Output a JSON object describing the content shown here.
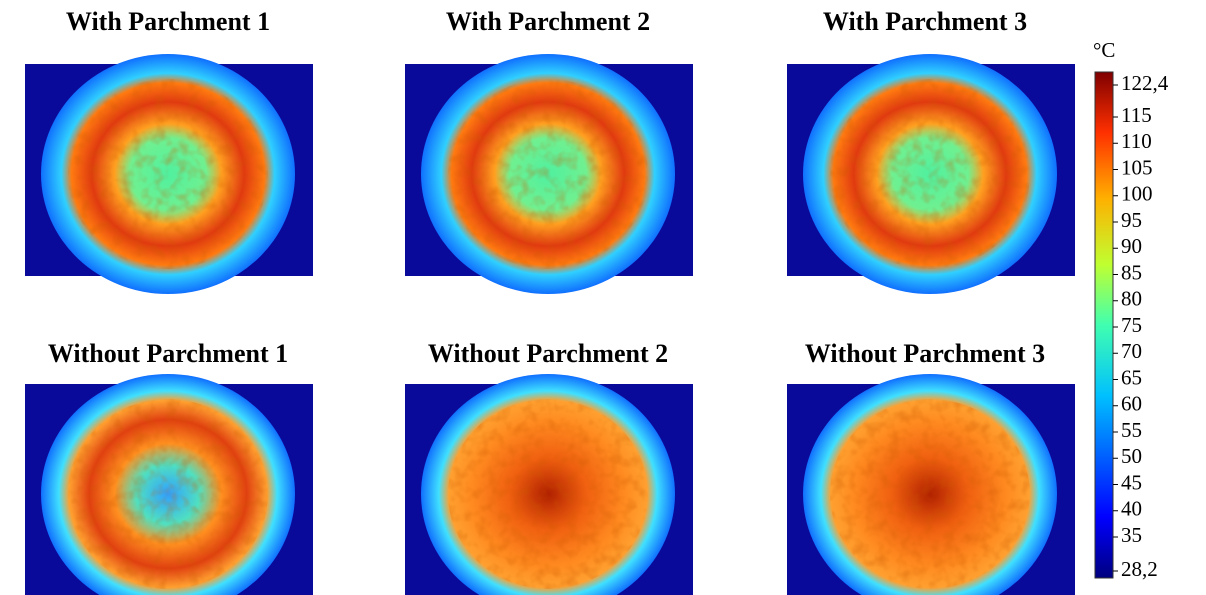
{
  "panels": [
    {
      "title": "With Parchment 1"
    },
    {
      "title": "With Parchment 2"
    },
    {
      "title": "With Parchment 3"
    },
    {
      "title": "Without Parchment 1"
    },
    {
      "title": "Without Parchment 2"
    },
    {
      "title": "Without Parchment 3"
    }
  ],
  "colorbar": {
    "unit": "°C",
    "labels": [
      "122,4",
      "115",
      "110",
      "105",
      "100",
      "95",
      "90",
      "85",
      "80",
      "75",
      "70",
      "65",
      "60",
      "55",
      "50",
      "45",
      "40",
      "35",
      "28,2"
    ]
  }
}
